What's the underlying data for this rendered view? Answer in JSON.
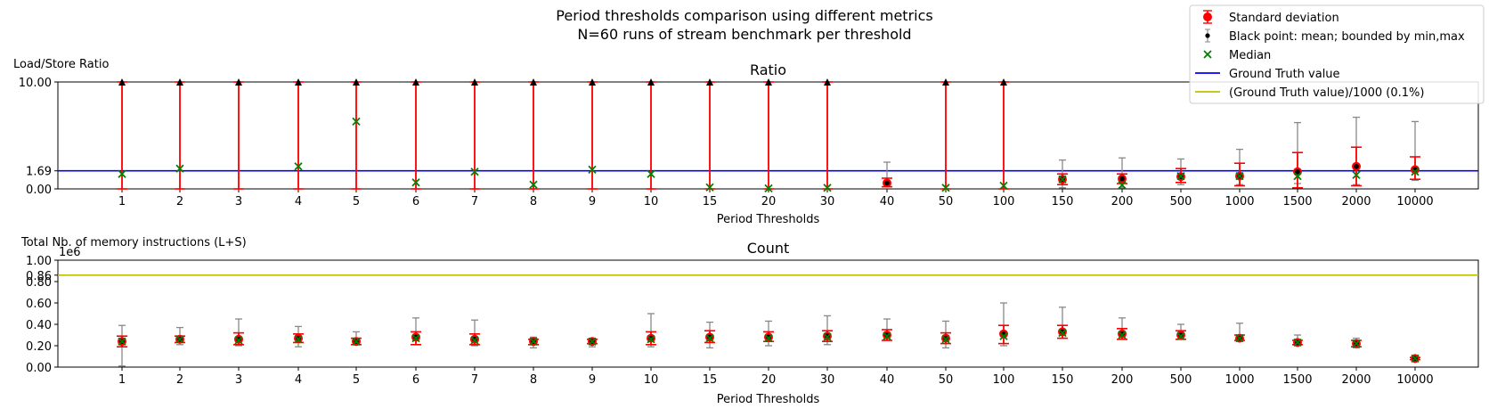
{
  "figure": {
    "title_line1": "Period thresholds comparison using different metrics",
    "title_line2": "N=60 runs of stream benchmark per threshold"
  },
  "legend": {
    "placement": "top-right",
    "entries": [
      {
        "label": "Standard deviation",
        "marker": "red-errorbar-dot",
        "color": "#ff0000"
      },
      {
        "label": "Black point: mean; bounded by min,max",
        "marker": "black-errorbar-dot",
        "color": "#000000"
      },
      {
        "label": "Median",
        "marker": "green-x",
        "color": "#008000"
      },
      {
        "label": "Ground Truth value",
        "marker": "line",
        "color": "#0000ff"
      },
      {
        "label": "(Ground Truth value)/1000 (0.1%)",
        "marker": "line",
        "color": "#bfbf00"
      }
    ]
  },
  "chart_data": [
    {
      "type": "scatter",
      "title": "Ratio",
      "ylabel": "Load/Store Ratio",
      "xlabel": "Period Thresholds",
      "categories": [
        "1",
        "2",
        "3",
        "4",
        "5",
        "6",
        "7",
        "8",
        "9",
        "10",
        "15",
        "20",
        "30",
        "40",
        "50",
        "100",
        "150",
        "200",
        "500",
        "1000",
        "1500",
        "2000",
        "10000"
      ],
      "ylim": [
        0,
        10
      ],
      "yticks": [
        "0.00",
        "1.69",
        "10.00"
      ],
      "reference_lines": [
        {
          "name": "Ground Truth value",
          "value": 1.69,
          "color": "#0000ff"
        }
      ],
      "clipped_top_marker": "black-triangle-up",
      "series": [
        {
          "name": "Black point: mean; bounded by min,max",
          "mean": [
            null,
            null,
            null,
            null,
            null,
            null,
            null,
            null,
            null,
            null,
            null,
            null,
            null,
            0.55,
            null,
            null,
            0.9,
            0.95,
            1.15,
            1.2,
            1.6,
            2.1,
            1.8
          ],
          "min": [
            0,
            0,
            0,
            0,
            0,
            0,
            0,
            0,
            0,
            0,
            0,
            0,
            0,
            0.2,
            0,
            0,
            0.1,
            0.1,
            0.4,
            0.4,
            0.5,
            0.4,
            0.8
          ],
          "max": [
            10,
            10,
            10,
            10,
            10,
            10,
            10,
            10,
            10,
            10,
            10,
            10,
            10,
            2.5,
            10,
            10,
            2.7,
            2.9,
            2.8,
            3.7,
            6.2,
            6.7,
            6.3
          ]
        },
        {
          "name": "Standard deviation",
          "lower": [
            0,
            0,
            0,
            0,
            0,
            0,
            0,
            0,
            0,
            0,
            0,
            0,
            0,
            0.2,
            0,
            0,
            0.4,
            0.5,
            0.6,
            0.3,
            0.1,
            0.3,
            0.9
          ],
          "upper": [
            10,
            10,
            10,
            10,
            10,
            10,
            10,
            10,
            10,
            10,
            10,
            10,
            10,
            1.0,
            10,
            10,
            1.4,
            1.4,
            1.9,
            2.4,
            3.4,
            3.9,
            3.0
          ]
        },
        {
          "name": "Median",
          "values": [
            1.4,
            1.9,
            null,
            2.1,
            6.3,
            0.6,
            1.6,
            0.4,
            1.8,
            1.4,
            0.15,
            0.05,
            0.1,
            null,
            0.1,
            0.3,
            0.9,
            0.35,
            1.2,
            1.2,
            1.2,
            1.3,
            1.6
          ]
        }
      ]
    },
    {
      "type": "scatter",
      "title": "Count",
      "ylabel": "Total Nb. of memory instructions (L+S)",
      "xlabel": "Period Thresholds",
      "scale_label": "1e6",
      "categories": [
        "1",
        "2",
        "3",
        "4",
        "5",
        "6",
        "7",
        "8",
        "9",
        "10",
        "15",
        "20",
        "30",
        "40",
        "50",
        "100",
        "150",
        "200",
        "500",
        "1000",
        "1500",
        "2000",
        "10000"
      ],
      "ylim": [
        0,
        1.0
      ],
      "yticks": [
        "0.00",
        "0.20",
        "0.40",
        "0.60",
        "0.80",
        "0.86",
        "1.00"
      ],
      "reference_lines": [
        {
          "name": "(Ground Truth value)/1000 (0.1%)",
          "value": 0.86,
          "color": "#bfbf00"
        }
      ],
      "series": [
        {
          "name": "Black point: mean; bounded by min,max",
          "mean": [
            0.24,
            0.26,
            0.26,
            0.27,
            0.24,
            0.28,
            0.26,
            0.24,
            0.24,
            0.27,
            0.28,
            0.28,
            0.29,
            0.3,
            0.27,
            0.31,
            0.33,
            0.31,
            0.3,
            0.27,
            0.23,
            0.22,
            0.08
          ],
          "min": [
            0.01,
            0.21,
            0.2,
            0.19,
            0.21,
            0.21,
            0.2,
            0.18,
            0.19,
            0.19,
            0.18,
            0.2,
            0.21,
            0.25,
            0.18,
            0.2,
            0.27,
            0.26,
            0.26,
            0.25,
            0.21,
            0.18,
            0.06
          ],
          "max": [
            0.39,
            0.37,
            0.45,
            0.38,
            0.33,
            0.46,
            0.44,
            0.28,
            0.27,
            0.5,
            0.42,
            0.43,
            0.48,
            0.45,
            0.43,
            0.6,
            0.56,
            0.46,
            0.4,
            0.41,
            0.3,
            0.27,
            0.1
          ]
        },
        {
          "name": "Standard deviation",
          "lower": [
            0.19,
            0.23,
            0.21,
            0.23,
            0.21,
            0.21,
            0.21,
            0.21,
            0.22,
            0.21,
            0.23,
            0.24,
            0.24,
            0.25,
            0.22,
            0.22,
            0.27,
            0.26,
            0.26,
            0.25,
            0.21,
            0.19,
            0.07
          ],
          "upper": [
            0.29,
            0.29,
            0.32,
            0.31,
            0.27,
            0.33,
            0.31,
            0.26,
            0.26,
            0.33,
            0.34,
            0.33,
            0.34,
            0.35,
            0.32,
            0.39,
            0.39,
            0.36,
            0.34,
            0.3,
            0.25,
            0.25,
            0.09
          ]
        },
        {
          "name": "Median",
          "values": [
            0.24,
            0.26,
            0.25,
            0.26,
            0.24,
            0.27,
            0.25,
            0.24,
            0.24,
            0.26,
            0.27,
            0.27,
            0.28,
            0.29,
            0.26,
            0.29,
            0.32,
            0.3,
            0.29,
            0.27,
            0.23,
            0.22,
            0.08
          ]
        }
      ]
    }
  ]
}
